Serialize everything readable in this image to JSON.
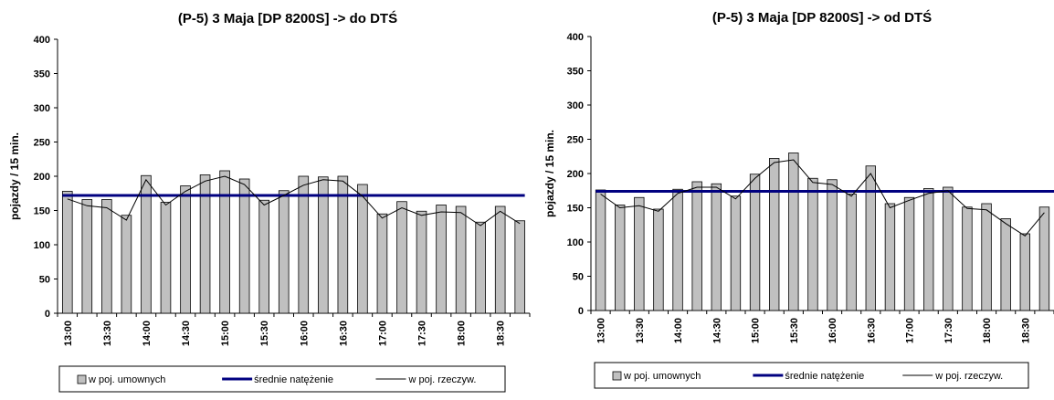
{
  "chart_data": [
    {
      "type": "bar",
      "title": "(P-5) 3 Maja [DP 8200S] -> do DTŚ",
      "ylabel": "pojazdy / 15 min.",
      "ylim": [
        0,
        400
      ],
      "yticks": [
        0,
        50,
        100,
        150,
        200,
        250,
        300,
        350,
        400
      ],
      "categories": [
        "13:00",
        "13:15",
        "13:30",
        "13:45",
        "14:00",
        "14:15",
        "14:30",
        "14:45",
        "15:00",
        "15:15",
        "15:30",
        "15:45",
        "16:00",
        "16:15",
        "16:30",
        "16:45",
        "17:00",
        "17:15",
        "17:30",
        "17:45",
        "18:00",
        "18:15",
        "18:30",
        "18:45"
      ],
      "tick_labels": [
        "13:00",
        "13:30",
        "14:00",
        "14:30",
        "15:00",
        "15:30",
        "16:00",
        "16:30",
        "17:00",
        "17:30",
        "18:00",
        "18:30"
      ],
      "series": [
        {
          "name": "w poj. umownych",
          "type": "bar",
          "color": "#c0c0c0",
          "values": [
            178,
            166,
            166,
            143,
            201,
            162,
            186,
            202,
            208,
            196,
            165,
            179,
            200,
            199,
            200,
            188,
            145,
            163,
            149,
            158,
            156,
            133,
            156,
            135
          ]
        },
        {
          "name": "średnie natężenie",
          "type": "line",
          "color": "#000080",
          "values": [
            172,
            172,
            172,
            172,
            172,
            172,
            172,
            172,
            172,
            172,
            172,
            172,
            172,
            172,
            172,
            172,
            172,
            172,
            172,
            172,
            172,
            172,
            172,
            172
          ]
        },
        {
          "name": "w poj. rzeczyw.",
          "type": "line",
          "color": "#000000",
          "values": [
            167,
            157,
            154,
            136,
            195,
            158,
            178,
            193,
            200,
            188,
            158,
            172,
            187,
            195,
            193,
            171,
            139,
            154,
            143,
            148,
            147,
            128,
            149,
            131
          ]
        }
      ],
      "legend": "bottom"
    },
    {
      "type": "bar",
      "title": "(P-5) 3 Maja [DP 8200S] -> od DTŚ",
      "ylabel": "pojazdy / 15 min.",
      "ylim": [
        0,
        400
      ],
      "yticks": [
        0,
        50,
        100,
        150,
        200,
        250,
        300,
        350,
        400
      ],
      "categories": [
        "13:00",
        "13:15",
        "13:30",
        "13:45",
        "14:00",
        "14:15",
        "14:30",
        "14:45",
        "15:00",
        "15:15",
        "15:30",
        "15:45",
        "16:00",
        "16:15",
        "16:30",
        "16:45",
        "17:00",
        "17:15",
        "17:30",
        "17:45",
        "18:00",
        "18:15",
        "18:30",
        "18:45"
      ],
      "tick_labels": [
        "13:00",
        "13:30",
        "14:00",
        "14:30",
        "15:00",
        "15:30",
        "16:00",
        "16:30",
        "17:00",
        "17:30",
        "18:00",
        "18:30"
      ],
      "series": [
        {
          "name": "w poj. umownych",
          "type": "bar",
          "color": "#c0c0c0",
          "values": [
            176,
            154,
            165,
            148,
            177,
            188,
            185,
            167,
            199,
            222,
            230,
            193,
            191,
            170,
            211,
            156,
            165,
            178,
            180,
            151,
            156,
            134,
            112,
            151
          ]
        },
        {
          "name": "średnie natężenie",
          "type": "line",
          "color": "#000080",
          "values": [
            174,
            174,
            174,
            174,
            174,
            174,
            174,
            174,
            174,
            174,
            174,
            174,
            174,
            174,
            174,
            174,
            174,
            174,
            174,
            174,
            174,
            174,
            174,
            174
          ]
        },
        {
          "name": "w poj. rzeczyw.",
          "type": "line",
          "color": "#000000",
          "values": [
            170,
            150,
            153,
            145,
            171,
            180,
            180,
            163,
            193,
            216,
            220,
            187,
            184,
            167,
            200,
            150,
            161,
            171,
            175,
            149,
            147,
            127,
            109,
            143
          ]
        }
      ],
      "legend": "bottom"
    }
  ]
}
